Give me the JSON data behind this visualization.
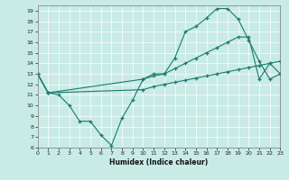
{
  "xlabel": "Humidex (Indice chaleur)",
  "xlim": [
    0,
    23
  ],
  "ylim": [
    6,
    19.5
  ],
  "xticks": [
    0,
    1,
    2,
    3,
    4,
    5,
    6,
    7,
    8,
    9,
    10,
    11,
    12,
    13,
    14,
    15,
    16,
    17,
    18,
    19,
    20,
    21,
    22,
    23
  ],
  "yticks": [
    6,
    7,
    8,
    9,
    10,
    11,
    12,
    13,
    14,
    15,
    16,
    17,
    18,
    19
  ],
  "bg_color": "#c8ebe6",
  "line_color": "#1a7a6e",
  "line1_x": [
    0,
    1,
    2,
    3,
    4,
    5,
    6,
    7,
    8,
    9,
    10,
    11,
    12,
    13,
    14,
    15,
    16,
    17,
    18,
    19,
    20,
    21,
    22,
    23
  ],
  "line1_y": [
    13,
    11.2,
    11,
    10,
    8.5,
    8.5,
    7.2,
    6.2,
    8.8,
    10.5,
    12.5,
    13,
    13,
    14.5,
    17,
    17.5,
    18.3,
    19.2,
    19.2,
    18.2,
    16.2,
    14.2,
    12.5,
    13
  ],
  "line2_x": [
    0,
    1,
    10,
    11,
    12,
    13,
    14,
    15,
    16,
    17,
    18,
    19,
    20,
    21,
    22,
    23
  ],
  "line2_y": [
    13,
    11.2,
    11.5,
    11.8,
    12.0,
    12.2,
    12.4,
    12.6,
    12.8,
    13.0,
    13.2,
    13.4,
    13.6,
    13.8,
    14.0,
    14.2
  ],
  "line3_x": [
    0,
    1,
    10,
    11,
    12,
    13,
    14,
    15,
    16,
    17,
    18,
    19,
    20,
    21,
    22,
    23
  ],
  "line3_y": [
    13,
    11.2,
    12.5,
    12.8,
    13.0,
    13.5,
    14.0,
    14.5,
    15.0,
    15.5,
    16.0,
    16.5,
    16.5,
    12.5,
    14.0,
    13.0
  ]
}
